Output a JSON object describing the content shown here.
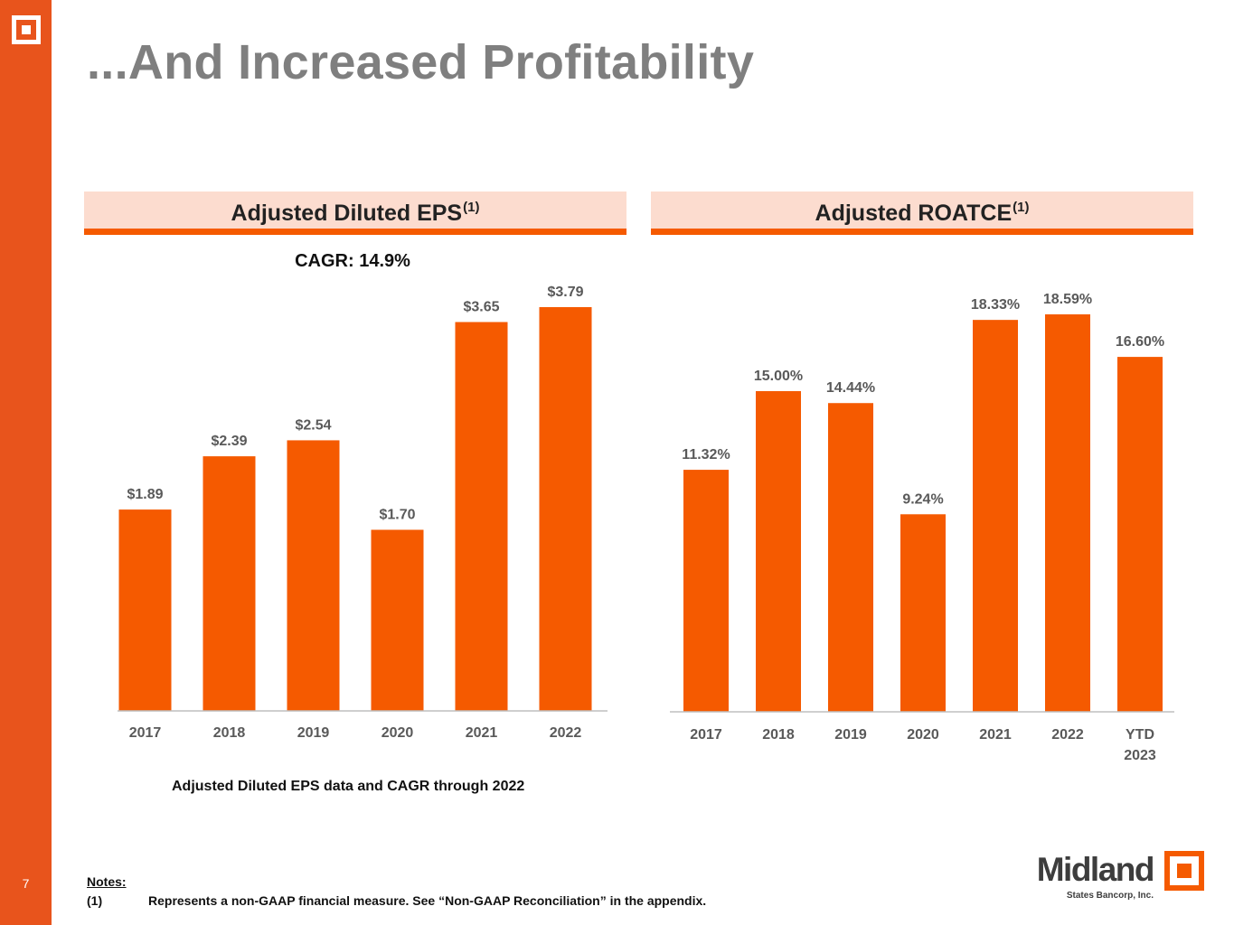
{
  "page_number": "7",
  "title": "...And Increased Profitability",
  "panels": {
    "eps": {
      "title": "Adjusted Diluted EPS",
      "sup": "(1)",
      "cagr": "CAGR: 14.9%",
      "note": "Adjusted Diluted EPS data and CAGR through 2022"
    },
    "roatce": {
      "title": "Adjusted ROATCE",
      "sup": "(1)"
    }
  },
  "notes": {
    "heading": "Notes:",
    "items": [
      {
        "num": "(1)",
        "text": "Represents a non-GAAP financial measure. See “Non-GAAP Reconciliation” in the appendix."
      }
    ]
  },
  "brand": {
    "name": "Midland",
    "sub": "States Bancorp, Inc.",
    "accent": "#f55a00"
  },
  "colors": {
    "sidebar": "#e8541c",
    "bar": "#f55a00",
    "header_bg": "#fcdccf"
  },
  "chart_data": [
    {
      "type": "bar",
      "title": "Adjusted Diluted EPS(1)",
      "categories": [
        "2017",
        "2018",
        "2019",
        "2020",
        "2021",
        "2022"
      ],
      "values": [
        1.89,
        2.39,
        2.54,
        1.7,
        3.65,
        3.79
      ],
      "labels": [
        "$1.89",
        "$2.39",
        "$2.54",
        "$1.70",
        "$3.65",
        "$3.79"
      ],
      "ylim": [
        0,
        3.79
      ],
      "grid": false
    },
    {
      "type": "bar",
      "title": "Adjusted ROATCE(1)",
      "categories": [
        "2017",
        "2018",
        "2019",
        "2020",
        "2021",
        "2022",
        "YTD 2023"
      ],
      "values": [
        11.32,
        15.0,
        14.44,
        9.24,
        18.33,
        18.59,
        16.6
      ],
      "labels": [
        "11.32%",
        "15.00%",
        "14.44%",
        "9.24%",
        "18.33%",
        "18.59%",
        "16.60%"
      ],
      "ylim": [
        0,
        18.59
      ],
      "grid": false
    }
  ]
}
